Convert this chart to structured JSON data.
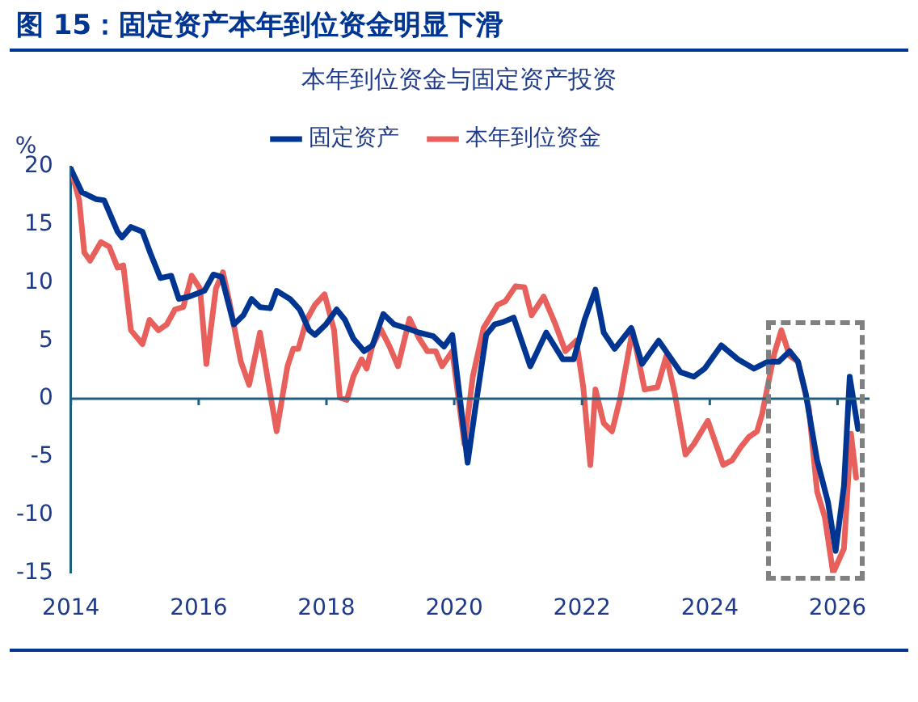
{
  "chart_data": {
    "type": "line",
    "title": "图 15：固定资产本年到位资金明显下滑",
    "subtitle": "本年到位资金与固定资产投资",
    "ylabel": "%",
    "xlim": [
      2014,
      2026.5
    ],
    "xticks": [
      2014,
      2016,
      2018,
      2020,
      2022,
      2024,
      2026
    ],
    "ylim": [
      -15,
      20
    ],
    "yticks": [
      -15,
      -10,
      -5,
      0,
      5,
      10,
      15,
      20
    ],
    "grid": false,
    "ref_lines": [
      {
        "axis": "y",
        "value": 0,
        "color": "#1f5f7f"
      }
    ],
    "legend": "top",
    "marker": "none",
    "line_style": "solid",
    "series": [
      {
        "name": "固定资产",
        "color": "#003591",
        "x": [
          2014.0,
          2014.17,
          2014.39,
          2014.52,
          2014.73,
          2014.8,
          2014.94,
          2015.12,
          2015.24,
          2015.4,
          2015.57,
          2015.69,
          2015.85,
          2016.09,
          2016.23,
          2016.36,
          2016.55,
          2016.7,
          2016.83,
          2016.96,
          2017.12,
          2017.22,
          2017.43,
          2017.58,
          2017.73,
          2017.82,
          2017.99,
          2018.16,
          2018.29,
          2018.42,
          2018.59,
          2018.72,
          2018.89,
          2019.06,
          2019.24,
          2019.45,
          2019.67,
          2019.84,
          2019.97,
          2020.21,
          2020.33,
          2020.5,
          2020.63,
          2020.76,
          2020.93,
          2021.19,
          2021.44,
          2021.7,
          2021.87,
          2022.04,
          2022.21,
          2022.34,
          2022.51,
          2022.77,
          2022.94,
          2023.2,
          2023.54,
          2023.75,
          2023.92,
          2024.18,
          2024.44,
          2024.69,
          2024.91,
          2025.08,
          2025.25,
          2025.38,
          2025.5,
          2025.68,
          2025.85,
          2025.97,
          2026.1,
          2026.19,
          2026.32
        ],
        "values": [
          19.8,
          17.8,
          17.2,
          17.1,
          14.4,
          13.9,
          14.8,
          14.4,
          12.6,
          10.4,
          10.6,
          8.6,
          8.8,
          9.3,
          10.7,
          10.5,
          6.4,
          7.2,
          8.6,
          7.9,
          7.8,
          9.3,
          8.6,
          7.7,
          5.9,
          5.5,
          6.4,
          7.7,
          6.8,
          5.2,
          4.1,
          4.6,
          7.3,
          6.4,
          6.1,
          5.7,
          5.4,
          4.5,
          5.5,
          -5.5,
          -0.8,
          5.5,
          6.4,
          6.6,
          7.0,
          2.8,
          5.7,
          3.4,
          3.4,
          6.8,
          9.4,
          5.7,
          4.3,
          6.1,
          3.0,
          5.0,
          2.3,
          1.9,
          2.6,
          4.6,
          3.4,
          2.6,
          3.2,
          3.2,
          4.1,
          3.2,
          0.5,
          -5.3,
          -8.9,
          -13.1,
          -7.5,
          1.9,
          -2.6
        ]
      },
      {
        "name": "本年到位资金",
        "color": "#e8605c",
        "x": [
          2014.0,
          2014.13,
          2014.21,
          2014.3,
          2014.47,
          2014.6,
          2014.73,
          2014.82,
          2014.94,
          2015.12,
          2015.23,
          2015.37,
          2015.5,
          2015.63,
          2015.76,
          2015.89,
          2016.02,
          2016.12,
          2016.27,
          2016.38,
          2016.49,
          2016.66,
          2016.79,
          2016.96,
          2017.09,
          2017.22,
          2017.39,
          2017.48,
          2017.56,
          2017.69,
          2017.82,
          2017.97,
          2018.12,
          2018.21,
          2018.32,
          2018.42,
          2018.55,
          2018.63,
          2018.72,
          2018.85,
          2018.98,
          2019.12,
          2019.3,
          2019.45,
          2019.58,
          2019.71,
          2019.81,
          2019.97,
          2020.16,
          2020.29,
          2020.46,
          2020.68,
          2020.8,
          2020.96,
          2021.1,
          2021.21,
          2021.4,
          2021.57,
          2021.74,
          2021.91,
          2022.02,
          2022.13,
          2022.21,
          2022.34,
          2022.47,
          2022.6,
          2022.79,
          2022.98,
          2023.18,
          2023.32,
          2023.45,
          2023.62,
          2023.75,
          2023.97,
          2024.21,
          2024.35,
          2024.48,
          2024.61,
          2024.74,
          2024.82,
          2024.91,
          2025.01,
          2025.12,
          2025.25,
          2025.38,
          2025.55,
          2025.68,
          2025.8,
          2025.93,
          2026.1,
          2026.21,
          2026.29
        ],
        "values": [
          19.8,
          17.1,
          12.6,
          11.9,
          13.5,
          13.1,
          11.3,
          11.5,
          5.9,
          4.7,
          6.8,
          5.9,
          6.4,
          7.7,
          7.9,
          10.6,
          9.5,
          3.0,
          9.5,
          10.9,
          8.1,
          3.2,
          1.2,
          5.7,
          1.4,
          -2.8,
          2.8,
          4.3,
          4.3,
          6.8,
          8.1,
          9.0,
          5.9,
          0.1,
          -0.1,
          1.9,
          3.4,
          2.6,
          4.6,
          6.0,
          4.6,
          2.8,
          6.9,
          5.2,
          4.1,
          4.1,
          2.8,
          4.1,
          -3.9,
          1.9,
          6.1,
          8.1,
          8.4,
          9.7,
          9.6,
          7.2,
          8.8,
          6.6,
          4.1,
          5.0,
          1.0,
          -5.7,
          0.8,
          -2.1,
          -2.8,
          0.1,
          5.9,
          0.8,
          1.0,
          3.7,
          0.5,
          -4.8,
          -3.9,
          -1.9,
          -5.7,
          -5.3,
          -4.2,
          -3.3,
          -2.8,
          -1.3,
          1.2,
          3.9,
          5.9,
          3.7,
          3.2,
          -0.8,
          -8.0,
          -10.2,
          -15.0,
          -12.9,
          -3.0,
          -6.8
        ]
      }
    ]
  }
}
